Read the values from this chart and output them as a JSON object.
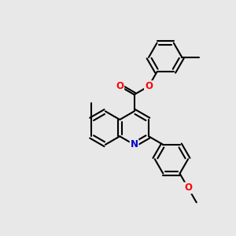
{
  "background_color": "#e8e8e8",
  "bond_color": "#000000",
  "bond_width": 1.5,
  "atom_colors": {
    "O": "#ff0000",
    "N": "#0000cc",
    "C": "#000000"
  },
  "figsize": [
    3.0,
    3.0
  ],
  "dpi": 100
}
